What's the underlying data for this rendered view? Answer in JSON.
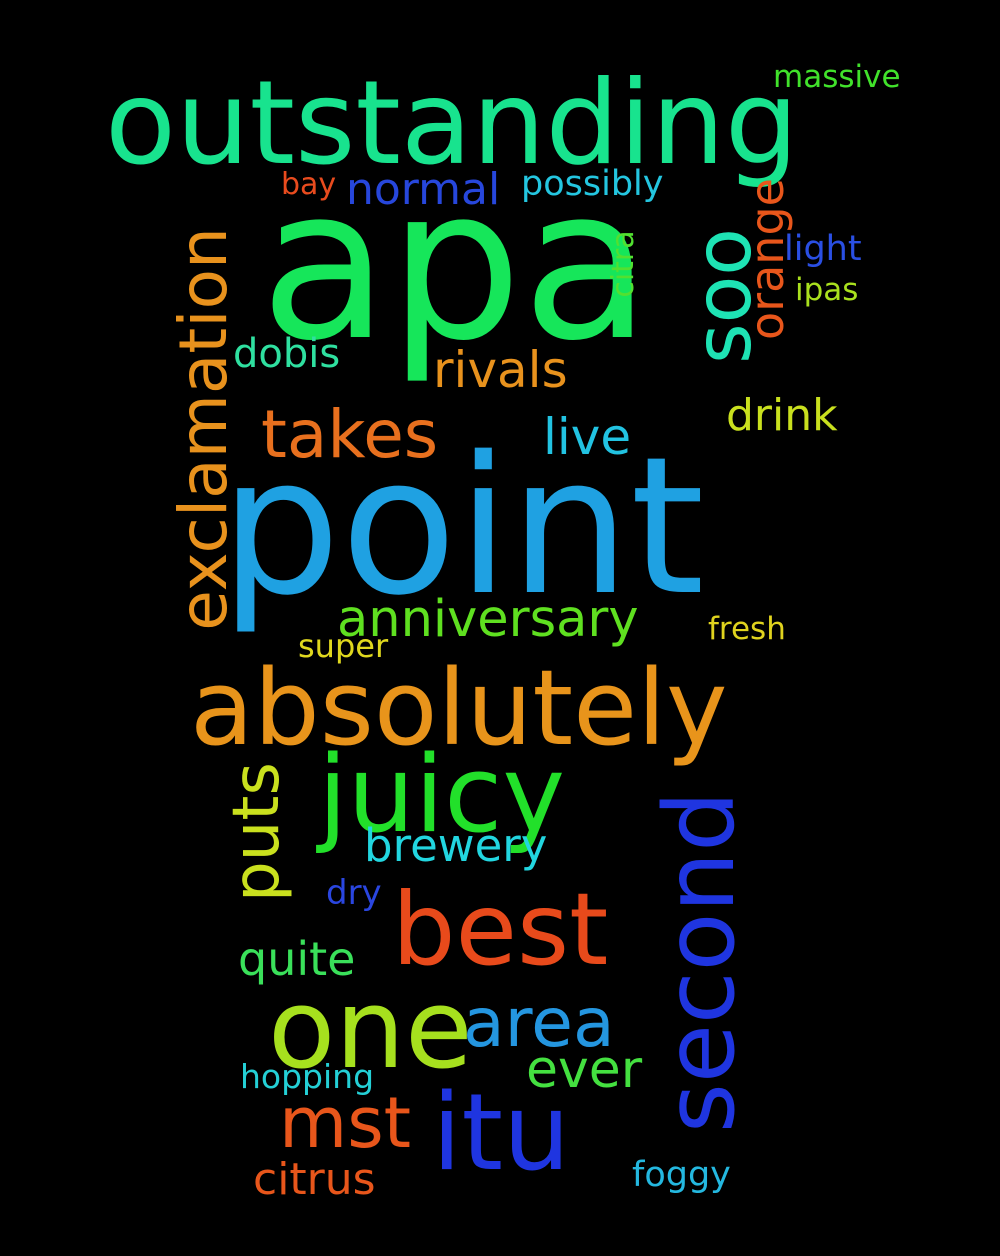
{
  "background": "#000000",
  "words": [
    {
      "id": "outstanding",
      "text": "outstanding",
      "color": "#18e38e"
    },
    {
      "id": "massive",
      "text": "massive",
      "color": "#41e22b"
    },
    {
      "id": "apa",
      "text": "apa",
      "color": "#16e65a"
    },
    {
      "id": "bay",
      "text": "bay",
      "color": "#e84b1e"
    },
    {
      "id": "normal",
      "text": "normal",
      "color": "#2747dc"
    },
    {
      "id": "possibly",
      "text": "possibly",
      "color": "#24c6e0"
    },
    {
      "id": "soo",
      "text": "soo",
      "color": "#1ee3b4"
    },
    {
      "id": "orange",
      "text": "orange",
      "color": "#e8561b"
    },
    {
      "id": "light",
      "text": "light",
      "color": "#2a4fe3"
    },
    {
      "id": "citra",
      "text": "citra",
      "color": "#52e030"
    },
    {
      "id": "ipas",
      "text": "ipas",
      "color": "#a9e01e"
    },
    {
      "id": "exclamation",
      "text": "exclamation",
      "color": "#e8921d"
    },
    {
      "id": "dobis",
      "text": "dobis",
      "color": "#2fe0a0"
    },
    {
      "id": "rivals",
      "text": "rivals",
      "color": "#e8921d"
    },
    {
      "id": "takes",
      "text": "takes",
      "color": "#e8701e"
    },
    {
      "id": "live",
      "text": "live",
      "color": "#22c3e2"
    },
    {
      "id": "drink",
      "text": "drink",
      "color": "#c9e01e"
    },
    {
      "id": "point",
      "text": "point",
      "color": "#1fa1e2"
    },
    {
      "id": "anniversary",
      "text": "anniversary",
      "color": "#5fe020"
    },
    {
      "id": "fresh",
      "text": "fresh",
      "color": "#e0d31e"
    },
    {
      "id": "super",
      "text": "super",
      "color": "#e0d81e"
    },
    {
      "id": "absolutely",
      "text": "absolutely",
      "color": "#e8941b"
    },
    {
      "id": "puts",
      "text": "puts",
      "color": "#c9e01e"
    },
    {
      "id": "juicy",
      "text": "juicy",
      "color": "#22e02a"
    },
    {
      "id": "second",
      "text": "second",
      "color": "#1f35e0"
    },
    {
      "id": "brewery",
      "text": "brewery",
      "color": "#22d6e0"
    },
    {
      "id": "dry",
      "text": "dry",
      "color": "#2a46e0"
    },
    {
      "id": "best",
      "text": "best",
      "color": "#e84a1b"
    },
    {
      "id": "quite",
      "text": "quite",
      "color": "#3ae05a"
    },
    {
      "id": "one",
      "text": "one",
      "color": "#a6e01e"
    },
    {
      "id": "area",
      "text": "area",
      "color": "#2496e0"
    },
    {
      "id": "ever",
      "text": "ever",
      "color": "#44e040"
    },
    {
      "id": "hopping",
      "text": "hopping",
      "color": "#24d0d6"
    },
    {
      "id": "mst",
      "text": "mst",
      "color": "#e8561b"
    },
    {
      "id": "itu",
      "text": "itu",
      "color": "#1f35e0"
    },
    {
      "id": "citrus",
      "text": "citrus",
      "color": "#e8561b"
    },
    {
      "id": "foggy",
      "text": "foggy",
      "color": "#24b8e0"
    }
  ]
}
